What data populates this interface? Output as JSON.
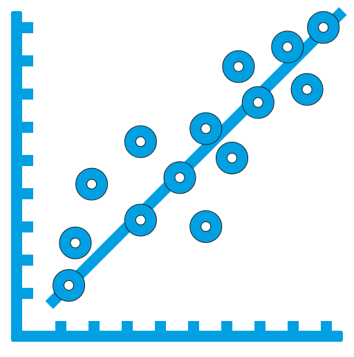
{
  "colors": {
    "primary": "#00A0E3",
    "hole": "#ffffff",
    "outline": "#1a1a1a"
  },
  "icon": "scatter-plot-with-trend-line-icon",
  "chart_data": {
    "type": "scatter",
    "title": "",
    "xlabel": "",
    "ylabel": "",
    "grid": false,
    "xlim": [
      0,
      10
    ],
    "ylim": [
      0,
      10
    ],
    "x_ticks": 9,
    "y_ticks": 9,
    "points": [
      {
        "x": 1.6,
        "y": 1.6
      },
      {
        "x": 1.8,
        "y": 2.9
      },
      {
        "x": 2.3,
        "y": 4.7
      },
      {
        "x": 3.8,
        "y": 3.6
      },
      {
        "x": 3.8,
        "y": 6.0
      },
      {
        "x": 5.0,
        "y": 4.9
      },
      {
        "x": 5.8,
        "y": 3.4
      },
      {
        "x": 5.8,
        "y": 6.4
      },
      {
        "x": 6.6,
        "y": 5.5
      },
      {
        "x": 6.8,
        "y": 8.3
      },
      {
        "x": 7.4,
        "y": 7.2
      },
      {
        "x": 8.3,
        "y": 8.9
      },
      {
        "x": 8.9,
        "y": 7.6
      },
      {
        "x": 9.4,
        "y": 9.5
      }
    ],
    "trend_line": {
      "x": [
        1.0,
        10.0
      ],
      "y": [
        1.0,
        10.0
      ]
    }
  }
}
